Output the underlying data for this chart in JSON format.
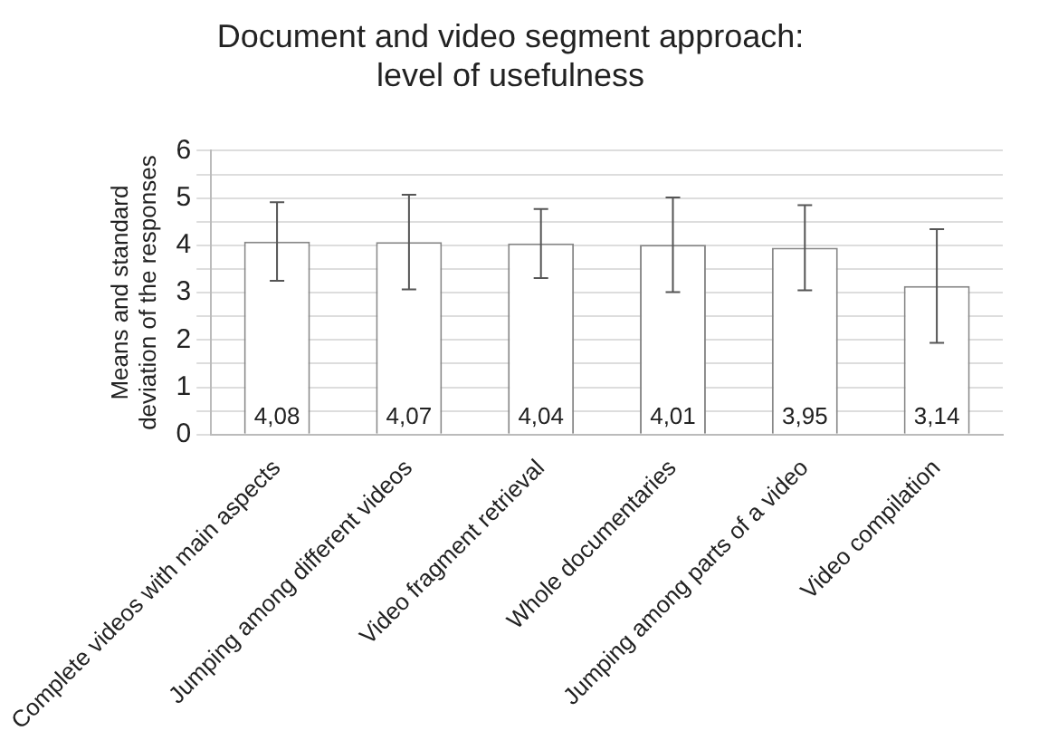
{
  "chart_data": {
    "type": "bar",
    "title": "Document and video segment approach:\nlevel of usefulness",
    "ylabel": "Means and standard\ndeviation of the responses",
    "categories": [
      "Complete videos with main aspects",
      "Jumping among different videos",
      "Video fragment retrieval",
      "Whole documentaries",
      "Jumping among parts of a video",
      "Video compilation"
    ],
    "values": [
      4.08,
      4.07,
      4.04,
      4.01,
      3.95,
      3.14
    ],
    "errors": [
      0.83,
      1.0,
      0.73,
      1.0,
      0.9,
      1.2
    ],
    "value_labels": [
      "4,08",
      "4,07",
      "4,04",
      "4,01",
      "3,95",
      "3,14"
    ],
    "color": "#ffffff",
    "ylim": [
      0,
      6
    ],
    "yticks": [
      0,
      {
        "value": 0.5,
        "label": null
      },
      1,
      {
        "value": 1.5,
        "label": null
      },
      2,
      {
        "value": 2.5,
        "label": null
      },
      3,
      {
        "value": 3.5,
        "label": null
      },
      4,
      {
        "value": 4.5,
        "label": null
      },
      5,
      {
        "value": 5.5,
        "label": null
      },
      6
    ],
    "grid": "y",
    "legend": false
  }
}
